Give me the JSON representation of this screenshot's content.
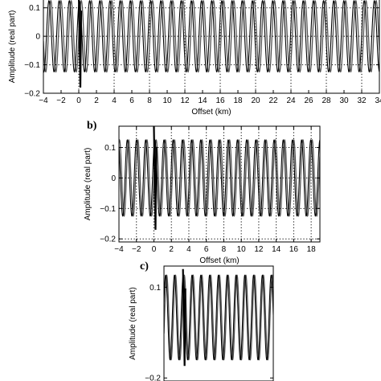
{
  "chart_data": [
    {
      "id": "a",
      "type": "line",
      "panel_label": "",
      "xlabel": "Offset (km)",
      "ylabel": "Amplitude (real part)",
      "xlim": [
        -4,
        34
      ],
      "ylim": [
        -0.2,
        0.15
      ],
      "xticks": [
        -4,
        -2,
        0,
        2,
        4,
        6,
        8,
        10,
        12,
        14,
        16,
        18,
        20,
        22,
        24,
        26,
        28,
        30,
        32,
        34
      ],
      "xtick_labels": [
        "−4",
        "−2",
        "0",
        "2",
        "4",
        "6",
        "8",
        "10",
        "12",
        "14",
        "16",
        "18",
        "20",
        "22",
        "24",
        "26",
        "28",
        "30",
        "32",
        "34"
      ],
      "yticks": [
        0.1,
        0,
        -0.1,
        -0.2
      ],
      "ytick_labels": [
        "0.1",
        "0",
        "−0.1",
        "−0.2"
      ],
      "grid": "dotted",
      "series": [
        {
          "amplitude": 0.125,
          "wavelength_km": 1.15,
          "color": "#555555"
        },
        {
          "amplitude": 0.125,
          "wavelength_km": 1.15,
          "color": "#000000"
        }
      ],
      "spike": {
        "x": 0,
        "y_min": -0.18,
        "y_max": 0.15
      }
    },
    {
      "id": "b",
      "type": "line",
      "panel_label": "b)",
      "xlabel": "Offset (km)",
      "ylabel": "Amplitude (real part)",
      "xlim": [
        -4,
        19
      ],
      "ylim": [
        -0.21,
        0.17
      ],
      "xticks": [
        -4,
        -2,
        0,
        2,
        4,
        6,
        8,
        10,
        12,
        14,
        16,
        18
      ],
      "xtick_labels": [
        "−4",
        "−2",
        "0",
        "2",
        "4",
        "6",
        "8",
        "10",
        "12",
        "14",
        "16",
        "18"
      ],
      "yticks": [
        0.1,
        0,
        -0.1,
        -0.2
      ],
      "ytick_labels": [
        "0.1",
        "0",
        "−0.1",
        "−0.2"
      ],
      "grid": "dotted",
      "series": [
        {
          "amplitude": 0.125,
          "wavelength_km": 1.05,
          "color": "#555555"
        },
        {
          "amplitude": 0.125,
          "wavelength_km": 1.05,
          "color": "#000000"
        }
      ],
      "spike": {
        "x": 0,
        "y_min": -0.17,
        "y_max": 0.17
      }
    },
    {
      "id": "c",
      "type": "line",
      "panel_label": "c)",
      "xlabel": "",
      "ylabel": "Amplitude (real part)",
      "xlim": [
        -4,
        19
      ],
      "ylim": [
        -0.21,
        0.17
      ],
      "xticks": [],
      "xtick_labels": [],
      "yticks": [
        0.1,
        -0.2
      ],
      "ytick_labels": [
        "0.1",
        "−0.2"
      ],
      "grid": "none",
      "series": [
        {
          "amplitude": 0.14,
          "wavelength_km": 1.85,
          "color": "#555555"
        },
        {
          "amplitude": 0.14,
          "wavelength_km": 1.85,
          "color": "#000000"
        }
      ],
      "spike": {
        "x": 0,
        "y_min": -0.16,
        "y_max": 0.16
      }
    }
  ]
}
